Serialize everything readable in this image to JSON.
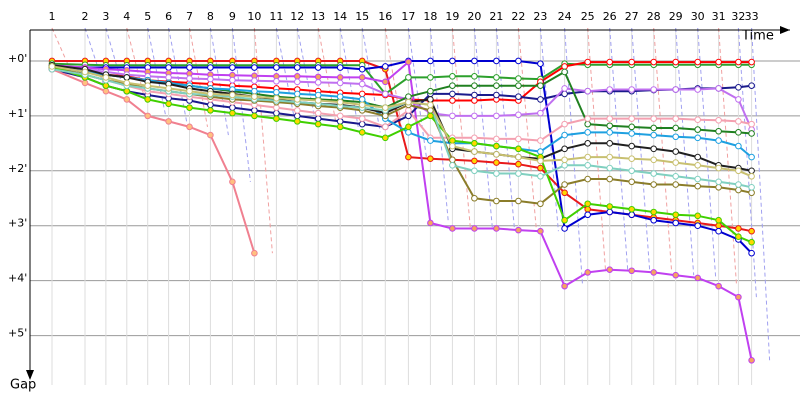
{
  "chart_data": {
    "type": "line",
    "x_label": "Time",
    "y_label": "Gap",
    "y_inverted": true,
    "grid": true,
    "xlim": [
      0,
      35
    ],
    "ylim": [
      -0.6,
      5.9
    ],
    "x": [
      1,
      2.5,
      3.45,
      4.4,
      5.35,
      6.3,
      7.25,
      8.2,
      9.2,
      10.2,
      11.2,
      12.15,
      13.1,
      14.1,
      15.1,
      16.15,
      17.2,
      18.2,
      19.2,
      20.2,
      21.2,
      22.2,
      23.2,
      24.3,
      25.35,
      26.35,
      27.35,
      28.35,
      29.35,
      30.35,
      31.3,
      32.2,
      32.8
    ],
    "xticks": [
      1,
      {
        "value": 2.5,
        "label": "2"
      },
      {
        "value": 3.45,
        "label": "3"
      },
      {
        "value": 4.4,
        "label": "4"
      },
      {
        "value": 5.35,
        "label": "5"
      },
      {
        "value": 6.3,
        "label": "6"
      },
      {
        "value": 7.25,
        "label": "7"
      },
      {
        "value": 8.2,
        "label": "8"
      },
      {
        "value": 9.2,
        "label": "9"
      },
      {
        "value": 10.2,
        "label": "10"
      },
      {
        "value": 11.2,
        "label": "11"
      },
      {
        "value": 12.15,
        "label": "12"
      },
      {
        "value": 13.1,
        "label": "13"
      },
      {
        "value": 14.1,
        "label": "14"
      },
      {
        "value": 15.1,
        "label": "15"
      },
      {
        "value": 16.15,
        "label": "16"
      },
      {
        "value": 17.2,
        "label": "17"
      },
      {
        "value": 18.2,
        "label": "18"
      },
      {
        "value": 19.2,
        "label": "19"
      },
      {
        "value": 20.2,
        "label": "20"
      },
      {
        "value": 21.2,
        "label": "21"
      },
      {
        "value": 22.2,
        "label": "22"
      },
      {
        "value": 23.2,
        "label": "23"
      },
      {
        "value": 24.3,
        "label": "24"
      },
      {
        "value": 25.35,
        "label": "25"
      },
      {
        "value": 26.35,
        "label": "26"
      },
      {
        "value": 27.35,
        "label": "27"
      },
      {
        "value": 28.35,
        "label": "28"
      },
      {
        "value": 29.35,
        "label": "29"
      },
      {
        "value": 30.35,
        "label": "30"
      },
      {
        "value": 31.3,
        "label": "31"
      },
      {
        "value": 32.2,
        "label": "32"
      },
      {
        "value": 32.8,
        "label": "33"
      }
    ],
    "yticks": [
      {
        "value": 0,
        "label": "+0'"
      },
      {
        "value": 1,
        "label": "+1'"
      },
      {
        "value": 2,
        "label": "+2'"
      },
      {
        "value": 3,
        "label": "+3'"
      },
      {
        "value": 4,
        "label": "+4'"
      },
      {
        "value": 5,
        "label": "+5'"
      }
    ],
    "series": [
      {
        "color": "#e8191b",
        "marker_color": "#ffd700",
        "values": [
          0,
          0,
          0,
          0,
          0,
          0,
          0,
          0,
          0,
          0,
          0,
          0,
          0,
          0,
          0,
          0.15,
          1.75,
          1.78,
          1.8,
          1.82,
          1.85,
          1.88,
          1.95,
          2.4,
          2.7,
          2.75,
          2.8,
          2.85,
          2.9,
          2.95,
          3.0,
          3.05,
          3.1
        ]
      },
      {
        "color": "#2ca02c",
        "marker_color": "#ffffff",
        "values": [
          0.05,
          0.07,
          0.08,
          0.08,
          0.08,
          0.08,
          0.08,
          0.08,
          0.08,
          0.08,
          0.08,
          0.08,
          0.08,
          0.08,
          0.08,
          0.6,
          0.3,
          0.3,
          0.28,
          0.28,
          0.3,
          0.32,
          0.33,
          0.05,
          0.07,
          0.07,
          0.07,
          0.07,
          0.07,
          0.07,
          0.07,
          0.07,
          0.07
        ]
      },
      {
        "color": "#ff0000",
        "marker_color": "#ffffff",
        "values": [
          0.12,
          0.2,
          0.25,
          0.28,
          0.35,
          0.38,
          0.4,
          0.42,
          0.45,
          0.47,
          0.5,
          0.52,
          0.55,
          0.58,
          0.6,
          0.62,
          0.7,
          0.72,
          0.72,
          0.72,
          0.7,
          0.72,
          0.38,
          0.1,
          0.02,
          0.02,
          0.02,
          0.02,
          0.02,
          0.02,
          0.02,
          0.02,
          0.02
        ]
      },
      {
        "color": "#0000d0",
        "marker_color": "#ffffff",
        "values": [
          0.1,
          0.12,
          0.12,
          0.12,
          0.12,
          0.12,
          0.12,
          0.12,
          0.12,
          0.12,
          0.12,
          0.12,
          0.12,
          0.12,
          0.15,
          0.1,
          0.0,
          0.0,
          0.0,
          0.0,
          0.0,
          0.0,
          0.05,
          3.05,
          2.8,
          2.75,
          2.8,
          2.9,
          2.95,
          3.0,
          3.1,
          3.25,
          3.5
        ]
      },
      {
        "color": "#c040f0",
        "marker_color": "#f4a460",
        "values": [
          0.08,
          0.12,
          0.15,
          0.17,
          0.2,
          0.22,
          0.23,
          0.25,
          0.26,
          0.27,
          0.28,
          0.28,
          0.29,
          0.3,
          0.3,
          0.38,
          0.02,
          2.95,
          3.05,
          3.05,
          3.05,
          3.08,
          3.1,
          4.1,
          3.85,
          3.8,
          3.82,
          3.85,
          3.9,
          3.95,
          4.1,
          4.3,
          5.45
        ]
      },
      {
        "color": "#1a1a8c",
        "marker_color": "#ffffff",
        "values": [
          0.15,
          0.3,
          0.45,
          0.55,
          0.62,
          0.68,
          0.72,
          0.8,
          0.85,
          0.9,
          0.95,
          1.0,
          1.05,
          1.1,
          1.15,
          1.2,
          1.0,
          0.6,
          0.6,
          0.62,
          0.62,
          0.65,
          0.7,
          0.6,
          0.55,
          0.55,
          0.55,
          0.53,
          0.52,
          0.5,
          0.5,
          0.48,
          0.45
        ]
      },
      {
        "color": "#c070f0",
        "marker_color": "#ffffff",
        "values": [
          0.1,
          0.15,
          0.2,
          0.25,
          0.28,
          0.3,
          0.32,
          0.33,
          0.35,
          0.36,
          0.37,
          0.38,
          0.39,
          0.4,
          0.42,
          0.6,
          0.7,
          0.95,
          1.0,
          1.0,
          1.0,
          0.98,
          0.95,
          0.5,
          0.55,
          0.52,
          0.52,
          0.52,
          0.52,
          0.52,
          0.5,
          0.7,
          1.25
        ]
      },
      {
        "color": "#208020",
        "marker_color": "#ffffff",
        "values": [
          0.15,
          0.2,
          0.25,
          0.3,
          0.35,
          0.4,
          0.45,
          0.5,
          0.55,
          0.6,
          0.65,
          0.68,
          0.7,
          0.72,
          0.75,
          0.85,
          0.65,
          0.55,
          0.45,
          0.45,
          0.45,
          0.45,
          0.45,
          0.2,
          1.15,
          1.18,
          1.2,
          1.22,
          1.22,
          1.25,
          1.28,
          1.3,
          1.32
        ]
      },
      {
        "color": "#f08090",
        "marker_color": "#ffc080",
        "values": [
          0.15,
          0.4,
          0.55,
          0.7,
          1.0,
          1.1,
          1.2,
          1.35,
          2.2,
          3.5,
          null,
          null,
          null,
          null,
          null,
          null,
          null,
          null,
          null,
          null,
          null,
          null,
          null,
          null,
          null,
          null,
          null,
          null,
          null,
          null,
          null,
          null,
          null
        ]
      },
      {
        "color": "#f4a0b0",
        "marker_color": "#ffffff",
        "values": [
          0.1,
          0.25,
          0.35,
          0.45,
          0.55,
          0.6,
          0.65,
          0.7,
          0.75,
          0.8,
          0.85,
          0.9,
          0.95,
          1.0,
          1.05,
          1.2,
          0.9,
          1.4,
          1.4,
          1.4,
          1.42,
          1.42,
          1.45,
          1.15,
          1.05,
          1.05,
          1.05,
          1.05,
          1.05,
          1.07,
          1.08,
          1.1,
          1.15
        ]
      },
      {
        "color": "#1ea0e0",
        "marker_color": "#ffffff",
        "values": [
          0.1,
          0.2,
          0.25,
          0.3,
          0.35,
          0.4,
          0.45,
          0.5,
          0.52,
          0.55,
          0.57,
          0.6,
          0.62,
          0.65,
          0.7,
          1.05,
          1.3,
          1.45,
          1.5,
          1.5,
          1.55,
          1.6,
          1.65,
          1.35,
          1.3,
          1.3,
          1.32,
          1.35,
          1.38,
          1.4,
          1.45,
          1.55,
          1.75
        ]
      },
      {
        "color": "#202020",
        "marker_color": "#ffffff",
        "values": [
          0.08,
          0.15,
          0.25,
          0.3,
          0.38,
          0.42,
          0.5,
          0.55,
          0.6,
          0.65,
          0.7,
          0.75,
          0.78,
          0.8,
          0.85,
          0.95,
          0.75,
          0.7,
          1.6,
          1.65,
          1.7,
          1.75,
          1.78,
          1.6,
          1.5,
          1.5,
          1.55,
          1.6,
          1.65,
          1.75,
          1.9,
          1.95,
          2.0
        ]
      },
      {
        "color": "#8b7d2a",
        "marker_color": "#ffffff",
        "values": [
          0.12,
          0.25,
          0.35,
          0.42,
          0.5,
          0.55,
          0.6,
          0.65,
          0.7,
          0.72,
          0.75,
          0.78,
          0.82,
          0.85,
          0.9,
          1.0,
          0.8,
          0.9,
          1.8,
          2.5,
          2.55,
          2.55,
          2.6,
          2.25,
          2.15,
          2.15,
          2.2,
          2.25,
          2.25,
          2.28,
          2.3,
          2.35,
          2.4
        ]
      },
      {
        "color": "#40d000",
        "marker_color": "#ffd700",
        "values": [
          0.1,
          0.3,
          0.45,
          0.55,
          0.7,
          0.78,
          0.85,
          0.9,
          0.95,
          1.0,
          1.05,
          1.1,
          1.15,
          1.2,
          1.3,
          1.4,
          1.2,
          1.0,
          1.45,
          1.5,
          1.55,
          1.6,
          1.75,
          2.9,
          2.6,
          2.65,
          2.7,
          2.75,
          2.8,
          2.82,
          2.9,
          3.2,
          3.3
        ]
      },
      {
        "color": "#80d0c0",
        "marker_color": "#ffffff",
        "values": [
          0.15,
          0.25,
          0.35,
          0.45,
          0.5,
          0.55,
          0.6,
          0.62,
          0.65,
          0.7,
          0.72,
          0.75,
          0.78,
          0.82,
          0.85,
          0.9,
          0.75,
          0.8,
          1.9,
          2.0,
          2.05,
          2.05,
          2.1,
          1.9,
          1.9,
          1.95,
          2.0,
          2.05,
          2.1,
          2.15,
          2.2,
          2.25,
          2.3
        ]
      },
      {
        "color": "#c8c070",
        "marker_color": "#ffffff",
        "values": [
          0.1,
          0.2,
          0.3,
          0.4,
          0.45,
          0.5,
          0.55,
          0.6,
          0.62,
          0.65,
          0.68,
          0.7,
          0.72,
          0.75,
          0.8,
          0.85,
          0.75,
          0.8,
          1.55,
          1.65,
          1.7,
          1.75,
          1.82,
          1.8,
          1.75,
          1.75,
          1.78,
          1.8,
          1.85,
          1.9,
          1.95,
          2.0,
          2.1
        ]
      }
    ]
  }
}
